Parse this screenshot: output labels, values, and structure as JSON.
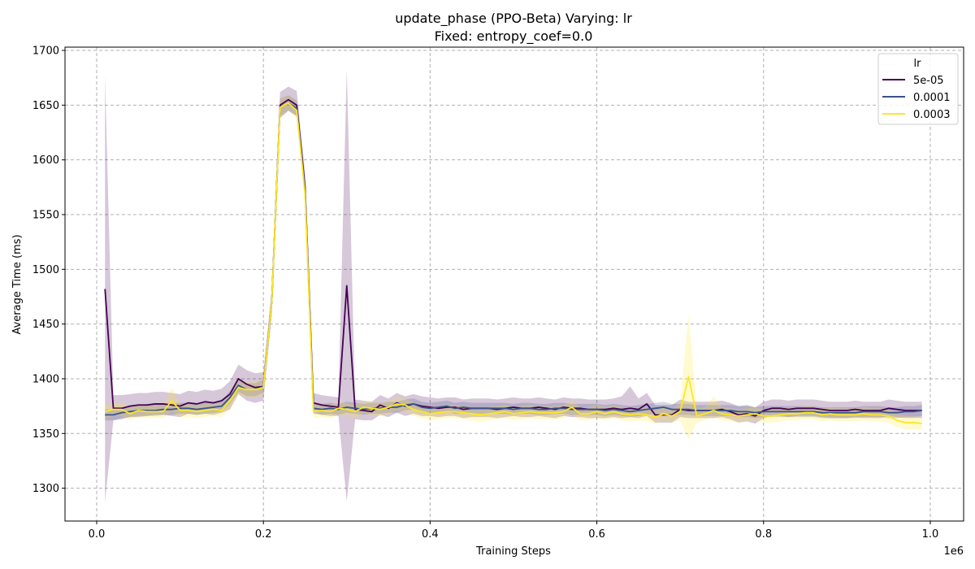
{
  "chart_data": {
    "type": "line",
    "title": "update_phase (PPO-Beta) Varying: lr",
    "subtitle": "Fixed: entropy_coef=0.0",
    "xlabel": "Training Steps",
    "ylabel": "Average Time (ms)",
    "x_offset_label": "1e6",
    "xlim": [
      -0.038,
      1.04
    ],
    "ylim": [
      1270,
      1703
    ],
    "xticks": [
      0.0,
      0.2,
      0.4,
      0.6,
      0.8,
      1.0
    ],
    "xtick_labels": [
      "0.0",
      "0.2",
      "0.4",
      "0.6",
      "0.8",
      "1.0"
    ],
    "yticks": [
      1300,
      1350,
      1400,
      1450,
      1500,
      1550,
      1600,
      1650,
      1700
    ],
    "ytick_labels": [
      "1300",
      "1350",
      "1400",
      "1450",
      "1500",
      "1550",
      "1600",
      "1650",
      "1700"
    ],
    "grid": true,
    "legend": {
      "title": "lr",
      "position": "top-right"
    },
    "x": [
      0.01,
      0.02,
      0.03,
      0.04,
      0.05,
      0.06,
      0.07,
      0.08,
      0.09,
      0.1,
      0.11,
      0.12,
      0.13,
      0.14,
      0.15,
      0.16,
      0.17,
      0.18,
      0.19,
      0.2,
      0.21,
      0.22,
      0.23,
      0.24,
      0.25,
      0.26,
      0.27,
      0.28,
      0.29,
      0.3,
      0.31,
      0.32,
      0.33,
      0.34,
      0.35,
      0.36,
      0.37,
      0.38,
      0.39,
      0.4,
      0.41,
      0.42,
      0.43,
      0.44,
      0.45,
      0.46,
      0.47,
      0.48,
      0.49,
      0.5,
      0.51,
      0.52,
      0.53,
      0.54,
      0.55,
      0.56,
      0.57,
      0.58,
      0.59,
      0.6,
      0.61,
      0.62,
      0.63,
      0.64,
      0.65,
      0.66,
      0.67,
      0.68,
      0.69,
      0.7,
      0.71,
      0.72,
      0.73,
      0.74,
      0.75,
      0.76,
      0.77,
      0.78,
      0.79,
      0.8,
      0.81,
      0.82,
      0.83,
      0.84,
      0.85,
      0.86,
      0.87,
      0.88,
      0.89,
      0.9,
      0.91,
      0.92,
      0.93,
      0.94,
      0.95,
      0.96,
      0.97,
      0.98,
      0.99
    ],
    "series": [
      {
        "name": "5e-05",
        "color": "#440154",
        "values": [
          1482,
          1373,
          1373,
          1375,
          1376,
          1376,
          1377,
          1377,
          1376,
          1375,
          1378,
          1377,
          1379,
          1378,
          1380,
          1386,
          1400,
          1395,
          1392,
          1393,
          1470,
          1650,
          1655,
          1650,
          1575,
          1378,
          1376,
          1375,
          1374,
          1485,
          1372,
          1371,
          1370,
          1376,
          1373,
          1378,
          1375,
          1377,
          1375,
          1374,
          1373,
          1374,
          1374,
          1372,
          1373,
          1373,
          1373,
          1372,
          1373,
          1374,
          1373,
          1373,
          1374,
          1373,
          1372,
          1374,
          1373,
          1373,
          1372,
          1372,
          1372,
          1373,
          1372,
          1373,
          1372,
          1377,
          1367,
          1367,
          1367,
          1372,
          1371,
          1371,
          1371,
          1371,
          1372,
          1370,
          1367,
          1368,
          1366,
          1371,
          1373,
          1373,
          1372,
          1373,
          1373,
          1373,
          1372,
          1371,
          1371,
          1371,
          1372,
          1371,
          1371,
          1371,
          1373,
          1372,
          1371,
          1371,
          1371
        ],
        "lower": [
          1287,
          1362,
          1363,
          1365,
          1365,
          1366,
          1367,
          1367,
          1366,
          1365,
          1368,
          1367,
          1368,
          1367,
          1369,
          1372,
          1386,
          1380,
          1378,
          1380,
          1458,
          1638,
          1645,
          1640,
          1562,
          1369,
          1367,
          1366,
          1366,
          1288,
          1363,
          1362,
          1362,
          1367,
          1365,
          1369,
          1366,
          1368,
          1366,
          1366,
          1365,
          1366,
          1366,
          1364,
          1365,
          1365,
          1365,
          1364,
          1365,
          1366,
          1365,
          1365,
          1366,
          1365,
          1364,
          1366,
          1365,
          1365,
          1364,
          1364,
          1364,
          1365,
          1364,
          1365,
          1364,
          1366,
          1360,
          1360,
          1360,
          1365,
          1364,
          1364,
          1364,
          1364,
          1365,
          1363,
          1360,
          1361,
          1359,
          1364,
          1366,
          1366,
          1365,
          1366,
          1366,
          1366,
          1365,
          1364,
          1364,
          1364,
          1365,
          1364,
          1364,
          1364,
          1366,
          1365,
          1364,
          1364,
          1364
        ],
        "upper": [
          1677,
          1385,
          1385,
          1386,
          1387,
          1387,
          1388,
          1388,
          1387,
          1386,
          1389,
          1388,
          1390,
          1389,
          1391,
          1398,
          1413,
          1408,
          1405,
          1406,
          1482,
          1662,
          1667,
          1663,
          1588,
          1387,
          1385,
          1384,
          1383,
          1683,
          1381,
          1380,
          1379,
          1385,
          1382,
          1387,
          1384,
          1386,
          1384,
          1383,
          1382,
          1383,
          1383,
          1381,
          1382,
          1382,
          1382,
          1381,
          1382,
          1383,
          1382,
          1382,
          1383,
          1382,
          1381,
          1383,
          1382,
          1382,
          1381,
          1381,
          1381,
          1382,
          1384,
          1393,
          1382,
          1387,
          1376,
          1376,
          1376,
          1381,
          1379,
          1379,
          1379,
          1379,
          1380,
          1378,
          1375,
          1376,
          1374,
          1379,
          1381,
          1381,
          1380,
          1381,
          1381,
          1381,
          1380,
          1379,
          1379,
          1379,
          1380,
          1379,
          1379,
          1379,
          1381,
          1380,
          1379,
          1379,
          1379
        ]
      },
      {
        "name": "0.0001",
        "color": "#3b528b",
        "values": [
          1367,
          1367,
          1369,
          1370,
          1371,
          1371,
          1371,
          1372,
          1372,
          1373,
          1373,
          1372,
          1373,
          1374,
          1375,
          1383,
          1394,
          1390,
          1390,
          1393,
          1470,
          1648,
          1652,
          1647,
          1572,
          1373,
          1372,
          1373,
          1372,
          1374,
          1373,
          1372,
          1373,
          1373,
          1374,
          1374,
          1376,
          1377,
          1374,
          1373,
          1374,
          1375,
          1373,
          1374,
          1373,
          1373,
          1373,
          1373,
          1373,
          1372,
          1373,
          1373,
          1372,
          1372,
          1373,
          1373,
          1372,
          1372,
          1372,
          1372,
          1371,
          1372,
          1371,
          1370,
          1371,
          1372,
          1373,
          1374,
          1372,
          1372,
          1372,
          1371,
          1371,
          1371,
          1371,
          1371,
          1370,
          1370,
          1369,
          1370,
          1370,
          1370,
          1370,
          1370,
          1370,
          1370,
          1369,
          1369,
          1369,
          1369,
          1369,
          1370,
          1370,
          1370,
          1369,
          1369,
          1370,
          1370,
          1371
        ],
        "lower": [
          1362,
          1362,
          1364,
          1365,
          1366,
          1366,
          1366,
          1367,
          1367,
          1368,
          1368,
          1367,
          1368,
          1369,
          1370,
          1377,
          1388,
          1384,
          1384,
          1387,
          1462,
          1640,
          1645,
          1640,
          1565,
          1368,
          1367,
          1368,
          1367,
          1369,
          1368,
          1367,
          1368,
          1368,
          1369,
          1369,
          1371,
          1372,
          1369,
          1368,
          1369,
          1370,
          1368,
          1369,
          1368,
          1368,
          1368,
          1368,
          1368,
          1367,
          1368,
          1368,
          1367,
          1367,
          1368,
          1368,
          1367,
          1367,
          1367,
          1367,
          1366,
          1367,
          1366,
          1365,
          1366,
          1367,
          1368,
          1369,
          1367,
          1367,
          1367,
          1366,
          1366,
          1366,
          1366,
          1366,
          1365,
          1365,
          1364,
          1365,
          1365,
          1365,
          1365,
          1365,
          1365,
          1365,
          1364,
          1364,
          1364,
          1364,
          1364,
          1365,
          1365,
          1365,
          1364,
          1364,
          1365,
          1365,
          1366
        ],
        "upper": [
          1372,
          1372,
          1374,
          1375,
          1376,
          1376,
          1376,
          1377,
          1377,
          1378,
          1378,
          1377,
          1378,
          1379,
          1380,
          1389,
          1400,
          1396,
          1396,
          1399,
          1478,
          1656,
          1659,
          1654,
          1579,
          1378,
          1377,
          1378,
          1377,
          1379,
          1378,
          1377,
          1378,
          1378,
          1379,
          1379,
          1381,
          1382,
          1379,
          1378,
          1379,
          1380,
          1378,
          1379,
          1378,
          1378,
          1378,
          1378,
          1378,
          1377,
          1378,
          1378,
          1377,
          1377,
          1378,
          1378,
          1377,
          1377,
          1377,
          1377,
          1376,
          1377,
          1376,
          1375,
          1376,
          1377,
          1378,
          1379,
          1377,
          1377,
          1377,
          1376,
          1376,
          1376,
          1376,
          1376,
          1375,
          1375,
          1374,
          1375,
          1375,
          1375,
          1375,
          1375,
          1375,
          1375,
          1374,
          1374,
          1374,
          1374,
          1374,
          1375,
          1375,
          1375,
          1374,
          1374,
          1375,
          1375,
          1376
        ]
      },
      {
        "name": "0.0003",
        "color": "#fde725",
        "values": [
          1370,
          1372,
          1372,
          1368,
          1371,
          1370,
          1370,
          1370,
          1380,
          1371,
          1371,
          1370,
          1371,
          1372,
          1371,
          1380,
          1392,
          1390,
          1390,
          1392,
          1470,
          1648,
          1652,
          1645,
          1568,
          1370,
          1371,
          1370,
          1373,
          1372,
          1370,
          1374,
          1373,
          1372,
          1374,
          1377,
          1376,
          1372,
          1370,
          1368,
          1369,
          1370,
          1370,
          1369,
          1368,
          1367,
          1368,
          1369,
          1370,
          1368,
          1369,
          1370,
          1369,
          1369,
          1369,
          1370,
          1374,
          1368,
          1368,
          1370,
          1368,
          1370,
          1368,
          1367,
          1368,
          1367,
          1365,
          1368,
          1366,
          1370,
          1402,
          1366,
          1368,
          1371,
          1368,
          1367,
          1366,
          1367,
          1368,
          1366,
          1366,
          1367,
          1368,
          1368,
          1369,
          1369,
          1367,
          1368,
          1367,
          1367,
          1367,
          1368,
          1367,
          1367,
          1366,
          1362,
          1360,
          1360,
          1359
        ],
        "lower": [
          1364,
          1366,
          1366,
          1362,
          1365,
          1364,
          1364,
          1364,
          1370,
          1365,
          1365,
          1364,
          1365,
          1366,
          1365,
          1373,
          1385,
          1383,
          1383,
          1385,
          1462,
          1640,
          1645,
          1638,
          1560,
          1364,
          1365,
          1364,
          1367,
          1366,
          1364,
          1368,
          1367,
          1366,
          1368,
          1371,
          1370,
          1366,
          1364,
          1362,
          1363,
          1364,
          1364,
          1363,
          1362,
          1361,
          1362,
          1363,
          1364,
          1362,
          1363,
          1364,
          1363,
          1363,
          1363,
          1364,
          1368,
          1362,
          1362,
          1364,
          1362,
          1364,
          1362,
          1361,
          1362,
          1361,
          1359,
          1362,
          1360,
          1362,
          1345,
          1360,
          1362,
          1365,
          1362,
          1361,
          1360,
          1361,
          1362,
          1360,
          1360,
          1361,
          1362,
          1362,
          1363,
          1363,
          1361,
          1362,
          1361,
          1361,
          1361,
          1362,
          1361,
          1361,
          1360,
          1356,
          1354,
          1354,
          1353
        ],
        "upper": [
          1376,
          1378,
          1378,
          1374,
          1377,
          1376,
          1376,
          1376,
          1392,
          1377,
          1377,
          1376,
          1377,
          1378,
          1377,
          1387,
          1399,
          1397,
          1397,
          1399,
          1478,
          1656,
          1659,
          1652,
          1576,
          1376,
          1377,
          1376,
          1379,
          1378,
          1376,
          1380,
          1379,
          1378,
          1380,
          1383,
          1382,
          1378,
          1376,
          1374,
          1375,
          1376,
          1376,
          1375,
          1374,
          1373,
          1374,
          1375,
          1376,
          1374,
          1375,
          1376,
          1375,
          1375,
          1375,
          1376,
          1380,
          1374,
          1374,
          1376,
          1374,
          1376,
          1374,
          1373,
          1374,
          1373,
          1371,
          1374,
          1372,
          1378,
          1459,
          1372,
          1374,
          1384,
          1374,
          1373,
          1372,
          1373,
          1374,
          1372,
          1372,
          1373,
          1374,
          1374,
          1375,
          1375,
          1373,
          1374,
          1373,
          1373,
          1373,
          1374,
          1373,
          1373,
          1372,
          1368,
          1366,
          1366,
          1365
        ]
      }
    ]
  }
}
